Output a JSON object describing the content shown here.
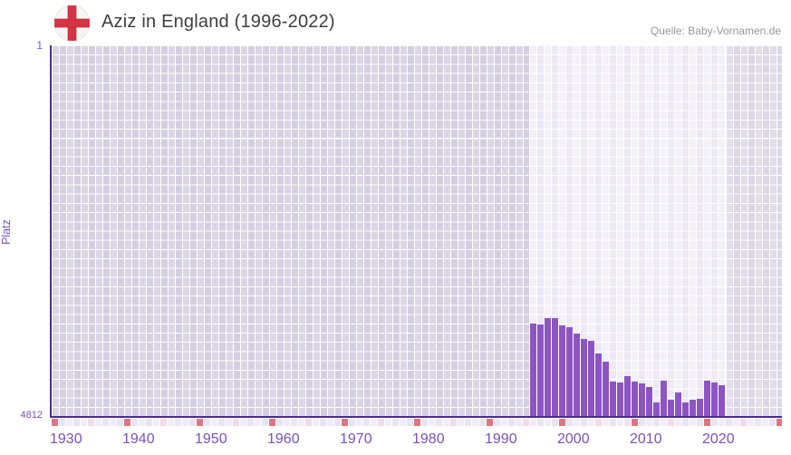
{
  "header": {
    "title": "Aziz in England (1996-2022)",
    "source": "Quelle: Baby-Vornamen.de",
    "flag_icon": "england-flag-icon"
  },
  "chart_data": {
    "type": "bar",
    "title": "Aziz in England (1996-2022)",
    "xlabel": "",
    "ylabel": "Platz",
    "y_axis": {
      "top_label": "1",
      "bottom_label": "4812",
      "min": 1,
      "max": 4812,
      "inverted": true,
      "note": "rank 1 is best and drawn at top; bars grow downward-anchored at axis"
    },
    "x_axis": {
      "start_year": 1930,
      "end_year": 2030,
      "tick_years": [
        1930,
        1940,
        1950,
        1960,
        1970,
        1980,
        1990,
        2000,
        2010,
        2020
      ]
    },
    "grid": true,
    "legend": false,
    "highlight_years": [
      1996,
      2022
    ],
    "categories": [
      1996,
      1997,
      1998,
      1999,
      2000,
      2001,
      2002,
      2003,
      2004,
      2005,
      2006,
      2007,
      2008,
      2009,
      2010,
      2011,
      2012,
      2013,
      2014,
      2015,
      2016,
      2017,
      2018,
      2019,
      2020,
      2021,
      2022
    ],
    "values": [
      3610,
      3622,
      3540,
      3543,
      3635,
      3660,
      3741,
      3812,
      3835,
      4000,
      4106,
      4365,
      4376,
      4294,
      4365,
      4388,
      4435,
      4635,
      4353,
      4600,
      4506,
      4635,
      4600,
      4588,
      4353,
      4376,
      4412
    ],
    "colors": {
      "bar": "#8c55c3",
      "axis": "#4b2d84",
      "tick_label": "#7a52b3",
      "cell_before_data": "#dbd5e5",
      "cell_data_range": "#f3f0f9",
      "cell_after_data": "#e2ddea",
      "strip_decade_red": "#de7680",
      "strip_half_decade_pink": "#f2dbe6",
      "flag_cross_red": "#d63343"
    }
  }
}
